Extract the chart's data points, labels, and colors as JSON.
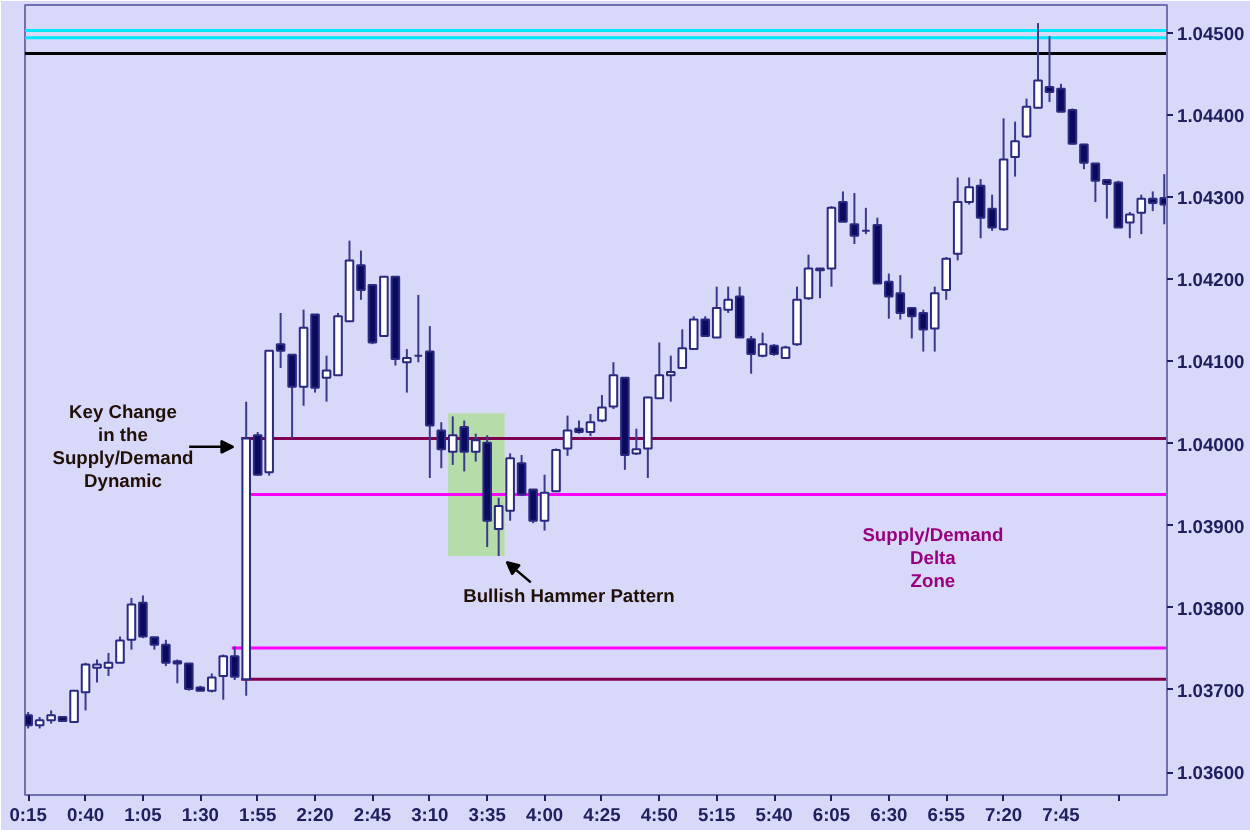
{
  "chart_data": {
    "type": "candlestick",
    "x": [
      0.25,
      0.3333,
      0.4167,
      0.5,
      0.5833,
      0.6667,
      0.75,
      0.8333,
      0.9167,
      1,
      1.0833,
      1.1667,
      1.25,
      1.3333,
      1.4167,
      1.5,
      1.5833,
      1.6667,
      1.75,
      1.8333,
      1.9167,
      2,
      2.0833,
      2.1667,
      2.25,
      2.3333,
      2.4167,
      2.5,
      2.5833,
      2.6667,
      2.75,
      2.8333,
      2.9167,
      3,
      3.0833,
      3.1667,
      3.25,
      3.3333,
      3.4167,
      3.5,
      3.5833,
      3.6667,
      3.75,
      3.8333,
      3.9167,
      4,
      4.0833,
      4.1667,
      4.25,
      4.3333,
      4.4167,
      4.5,
      4.5833,
      4.6667,
      4.75,
      4.8333,
      4.9167,
      5,
      5.0833,
      5.1667,
      5.25,
      5.3333,
      5.4167,
      5.5,
      5.5833,
      5.6667,
      5.75,
      5.8333,
      5.9167,
      6,
      6.0833,
      6.1667,
      6.25,
      6.3333,
      6.4167,
      6.5,
      6.5833,
      6.6667,
      6.75,
      6.8333,
      6.9167,
      7,
      7.0833,
      7.1667,
      7.25,
      7.3333,
      7.4167,
      7.5,
      7.5833,
      7.6667,
      7.75,
      7.8333,
      7.9167,
      8,
      8.0833,
      8.1667,
      8.25,
      8.3333,
      8.4167,
      8.5
    ],
    "ohlc": [
      [
        1.03669,
        1.03673,
        1.03653,
        1.03657
      ],
      [
        1.03657,
        1.03667,
        1.03653,
        1.03663
      ],
      [
        1.03663,
        1.03675,
        1.03659,
        1.03669
      ],
      [
        1.03667,
        1.03668,
        1.03662,
        1.03662
      ],
      [
        1.03661,
        1.03699,
        1.03661,
        1.03699
      ],
      [
        1.03697,
        1.03733,
        1.03675,
        1.03731
      ],
      [
        1.03727,
        1.03737,
        1.03709,
        1.03731
      ],
      [
        1.03727,
        1.03745,
        1.03717,
        1.03733
      ],
      [
        1.03733,
        1.03765,
        1.03733,
        1.0376
      ],
      [
        1.03761,
        1.03812,
        1.03749,
        1.03804
      ],
      [
        1.03806,
        1.03815,
        1.03763,
        1.03765
      ],
      [
        1.03764,
        1.03764,
        1.03749,
        1.03755
      ],
      [
        1.03755,
        1.03761,
        1.03729,
        1.03733
      ],
      [
        1.03735,
        1.03737,
        1.03708,
        1.03732
      ],
      [
        1.03732,
        1.03732,
        1.03699,
        1.03701
      ],
      [
        1.03703,
        1.03705,
        1.03699,
        1.03699
      ],
      [
        1.03699,
        1.0372,
        1.03697,
        1.03715
      ],
      [
        1.03717,
        1.03743,
        1.03688,
        1.03741
      ],
      [
        1.03741,
        1.03753,
        1.03712,
        1.03716
      ],
      [
        1.03713,
        1.04051,
        1.03693,
        1.04006
      ],
      [
        1.0401,
        1.04014,
        1.03961,
        1.03962
      ],
      [
        1.03965,
        1.04113,
        1.03961,
        1.04113
      ],
      [
        1.04121,
        1.04159,
        1.04092,
        1.04113
      ],
      [
        1.04108,
        1.04108,
        1.04006,
        1.04069
      ],
      [
        1.04069,
        1.04163,
        1.04046,
        1.04141
      ],
      [
        1.04157,
        1.04157,
        1.04062,
        1.04068
      ],
      [
        1.0408,
        1.04107,
        1.04051,
        1.04089
      ],
      [
        1.04083,
        1.04159,
        1.04083,
        1.04155
      ],
      [
        1.04149,
        1.04247,
        1.04149,
        1.04223
      ],
      [
        1.04217,
        1.04235,
        1.04175,
        1.04187
      ],
      [
        1.04193,
        1.04193,
        1.04121,
        1.04123
      ],
      [
        1.04131,
        1.04203,
        1.04131,
        1.04203
      ],
      [
        1.04203,
        1.04203,
        1.04095,
        1.04103
      ],
      [
        1.04099,
        1.04115,
        1.04062,
        1.04104
      ],
      [
        1.04107,
        1.04181,
        1.04099,
        1.04107
      ],
      [
        1.04112,
        1.04143,
        1.03958,
        1.04022
      ],
      [
        1.04016,
        1.04026,
        1.0397,
        1.03993
      ],
      [
        1.0399,
        1.04033,
        1.03974,
        1.0401
      ],
      [
        1.0402,
        1.04028,
        1.03966,
        1.0399
      ],
      [
        1.0399,
        1.04012,
        1.03978,
        1.04004
      ],
      [
        1.04001,
        1.0401,
        1.03874,
        1.03906
      ],
      [
        1.03896,
        1.03934,
        1.03863,
        1.03924
      ],
      [
        1.03918,
        1.03988,
        1.03906,
        1.03982
      ],
      [
        1.03976,
        1.03986,
        1.03936,
        1.03938
      ],
      [
        1.03944,
        1.03944,
        1.03903,
        1.03906
      ],
      [
        1.03906,
        1.03962,
        1.03894,
        1.0394
      ],
      [
        1.03942,
        1.03994,
        1.03942,
        1.03992
      ],
      [
        1.03994,
        1.04034,
        1.03985,
        1.04016
      ],
      [
        1.04018,
        1.04028,
        1.04012,
        1.04014
      ],
      [
        1.04014,
        1.04036,
        1.04009,
        1.04026
      ],
      [
        1.04028,
        1.04059,
        1.04026,
        1.04044
      ],
      [
        1.04045,
        1.04099,
        1.04042,
        1.04083
      ],
      [
        1.0408,
        1.0408,
        1.03968,
        1.03986
      ],
      [
        1.03988,
        1.04018,
        1.03986,
        1.03993
      ],
      [
        1.03994,
        1.04057,
        1.03958,
        1.04056
      ],
      [
        1.04055,
        1.04123,
        1.04055,
        1.04083
      ],
      [
        1.04083,
        1.04107,
        1.04051,
        1.04087
      ],
      [
        1.04092,
        1.04139,
        1.04091,
        1.04116
      ],
      [
        1.04115,
        1.04155,
        1.04115,
        1.04151
      ],
      [
        1.04151,
        1.04155,
        1.04131,
        1.04131
      ],
      [
        1.04129,
        1.04191,
        1.04129,
        1.04165
      ],
      [
        1.04163,
        1.04191,
        1.04159,
        1.04175
      ],
      [
        1.04179,
        1.04191,
        1.04129,
        1.04129
      ],
      [
        1.04127,
        1.04131,
        1.04085,
        1.04109
      ],
      [
        1.04107,
        1.04135,
        1.04105,
        1.04121
      ],
      [
        1.04119,
        1.04121,
        1.04107,
        1.04109
      ],
      [
        1.04104,
        1.04119,
        1.04103,
        1.04117
      ],
      [
        1.04121,
        1.04191,
        1.04119,
        1.04175
      ],
      [
        1.04177,
        1.0423,
        1.04175,
        1.04213
      ],
      [
        1.04211,
        1.04213,
        1.04177,
        1.04213
      ],
      [
        1.04213,
        1.04289,
        1.04191,
        1.04287
      ],
      [
        1.04294,
        1.04307,
        1.0427,
        1.0427
      ],
      [
        1.04267,
        1.04305,
        1.04243,
        1.04253
      ],
      [
        1.04259,
        1.04287,
        1.04255,
        1.04259
      ],
      [
        1.04266,
        1.04275,
        1.04195,
        1.04195
      ],
      [
        1.04197,
        1.04207,
        1.04152,
        1.04179
      ],
      [
        1.04183,
        1.04205,
        1.04151,
        1.04159
      ],
      [
        1.04165,
        1.04165,
        1.04128,
        1.04155
      ],
      [
        1.04159,
        1.04163,
        1.04112,
        1.04139
      ],
      [
        1.0414,
        1.04191,
        1.04112,
        1.04183
      ],
      [
        1.04187,
        1.04227,
        1.04175,
        1.04225
      ],
      [
        1.04231,
        1.04324,
        1.04223,
        1.04294
      ],
      [
        1.04294,
        1.04324,
        1.04291,
        1.04312
      ],
      [
        1.04314,
        1.04322,
        1.0425,
        1.04275
      ],
      [
        1.04286,
        1.04303,
        1.04259,
        1.04263
      ],
      [
        1.04261,
        1.04396,
        1.04259,
        1.04346
      ],
      [
        1.04349,
        1.04392,
        1.04325,
        1.04368
      ],
      [
        1.04374,
        1.0442,
        1.04372,
        1.0441
      ],
      [
        1.04409,
        1.04512,
        1.04408,
        1.04442
      ],
      [
        1.04434,
        1.04496,
        1.04416,
        1.04428
      ],
      [
        1.04432,
        1.04438,
        1.04404,
        1.04404
      ],
      [
        1.04406,
        1.04408,
        1.04364,
        1.04365
      ],
      [
        1.04364,
        1.04365,
        1.04334,
        1.04342
      ],
      [
        1.04341,
        1.04341,
        1.04294,
        1.0432
      ],
      [
        1.04321,
        1.04321,
        1.04274,
        1.04316
      ],
      [
        1.04318,
        1.0432,
        1.04263,
        1.04263
      ],
      [
        1.04269,
        1.04282,
        1.0425,
        1.04279
      ],
      [
        1.04281,
        1.04303,
        1.04255,
        1.04298
      ],
      [
        1.04298,
        1.04307,
        1.04283,
        1.04293
      ],
      [
        1.04299,
        1.04328,
        1.04267,
        1.04291
      ]
    ],
    "series": [
      {
        "type": "line",
        "color": "#800050",
        "x": [
          1.797,
          8.52
        ],
        "values": [
          1.04006,
          1.04006
        ]
      },
      {
        "type": "line",
        "color": "#ff00ff",
        "x": [
          1.852,
          8.52
        ],
        "values": [
          1.03938,
          1.03938
        ]
      },
      {
        "type": "line",
        "color": "#ff00ff",
        "x": [
          1.729,
          8.52
        ],
        "values": [
          1.03751,
          1.03751
        ]
      },
      {
        "type": "line",
        "color": "#800050",
        "x": [
          1.797,
          8.52
        ],
        "values": [
          1.03713,
          1.03713
        ]
      }
    ],
    "ref_lines": [
      {
        "axis": "y",
        "value": 1.04503,
        "color": "#00e8ff"
      },
      {
        "axis": "y",
        "value": 1.04494,
        "color": "#00e8ff"
      },
      {
        "axis": "y",
        "value": 1.04475,
        "color": "#000000"
      }
    ],
    "bands": [
      {
        "axis": "x",
        "from": 3.3,
        "to": 3.71,
        "color": "#b6dcaa"
      }
    ],
    "annotations": [
      {
        "text": "Key Change\nin the\nSupply/Demand\nDynamic",
        "x": 1.74,
        "y": 1.03996
      },
      {
        "text": "Bullish Hammer Pattern",
        "x": 3.6667,
        "y": 1.03863
      },
      "Supply/Demand\nDelta\nZone"
    ],
    "xlim": [
      0.227,
      8.52
    ],
    "ylim": [
      1.03572,
      1.04534
    ],
    "xticks": [
      {
        "value": 0.25,
        "label": "0:15"
      },
      {
        "value": 0.6667,
        "label": "0:40"
      },
      {
        "value": 1.0833,
        "label": "1:05"
      },
      {
        "value": 1.5,
        "label": "1:30"
      },
      {
        "value": 1.9167,
        "label": "1:55"
      },
      {
        "value": 2.3333,
        "label": "2:20"
      },
      {
        "value": 2.75,
        "label": "2:45"
      },
      {
        "value": 3.1667,
        "label": "3:10"
      },
      {
        "value": 3.5833,
        "label": "3:35"
      },
      {
        "value": 4,
        "label": "4:00"
      },
      {
        "value": 4.4167,
        "label": "4:25"
      },
      {
        "value": 4.8333,
        "label": "4:50"
      },
      {
        "value": 5.25,
        "label": "5:15"
      },
      {
        "value": 5.6667,
        "label": "5:40"
      },
      {
        "value": 6.0833,
        "label": "6:05"
      },
      {
        "value": 6.5,
        "label": "6:30"
      },
      {
        "value": 6.9167,
        "label": "6:55"
      },
      {
        "value": 7.3333,
        "label": "7:20"
      },
      {
        "value": 7.75,
        "label": "7:45"
      },
      {
        "value": 8.1667,
        "label": null
      }
    ],
    "yticks": [
      {
        "value": 1.036,
        "label": "1.03600"
      },
      {
        "value": 1.037,
        "label": "1.03700"
      },
      {
        "value": 1.038,
        "label": "1.03800"
      },
      {
        "value": 1.039,
        "label": "1.03900"
      },
      {
        "value": 1.04,
        "label": "1.04000"
      },
      {
        "value": 1.041,
        "label": "1.04100"
      },
      {
        "value": 1.042,
        "label": "1.04200"
      },
      {
        "value": 1.043,
        "label": "1.04300"
      },
      {
        "value": 1.044,
        "label": "1.04400"
      },
      {
        "value": 1.045,
        "label": "1.04500"
      }
    ]
  }
}
